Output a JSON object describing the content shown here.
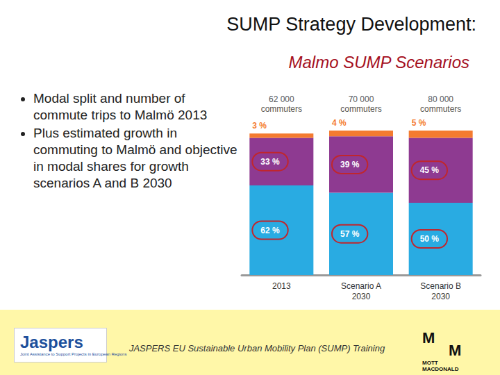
{
  "slide": {
    "title": "SUMP Strategy Development:",
    "subtitle": "Malmo SUMP Scenarios",
    "bullets": [
      "Modal split and number of commute trips to Malmö 2013",
      "Plus estimated growth in commuting to Malmö and objective in modal shares for growth scenarios A and B 2030"
    ],
    "footer": {
      "text": "JASPERS EU Sustainable Urban Mobility Plan (SUMP) Training",
      "logo_left": "Jaspers",
      "logo_left_subtitle": "Joint Assistance to Support Projects in European Regions",
      "logo_right_letters": [
        "M",
        "M"
      ],
      "logo_right": "MOTT MACDONALD"
    }
  },
  "chart_data": {
    "type": "bar",
    "stacked": true,
    "data_labels": true,
    "tick_labels": "x",
    "grid": false,
    "categories": [
      "2013",
      "Scenario A 2030",
      "Scenario B 2030"
    ],
    "ylim": [
      0,
      100
    ],
    "totals": [
      62000,
      70000,
      80000
    ],
    "total_labels": [
      "62 000 commuters",
      "70 000 commuters",
      "80 000 commuters"
    ],
    "series": [
      {
        "color": "#29abe2",
        "values": [
          62,
          57,
          50
        ],
        "value_labels": [
          "62 %",
          "57 %",
          "50 %"
        ]
      },
      {
        "color": "#8e3a91",
        "values": [
          33,
          39,
          45
        ],
        "value_labels": [
          "33 %",
          "39 %",
          "45 %"
        ]
      },
      {
        "color": "#f47b30",
        "values": [
          3,
          4,
          5
        ],
        "value_labels": [
          "3 %",
          "4 %",
          "5 %"
        ]
      }
    ]
  }
}
